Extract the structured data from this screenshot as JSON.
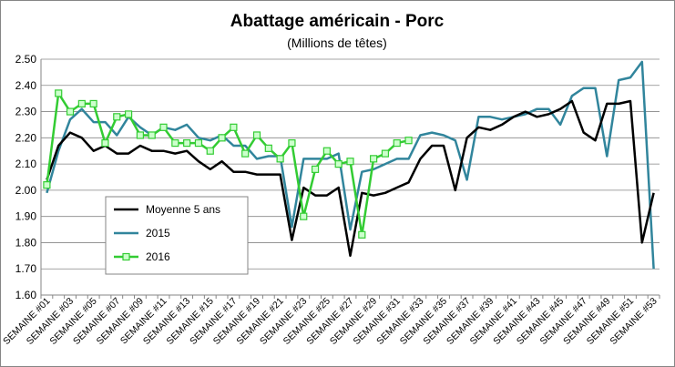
{
  "chart_data": {
    "type": "line",
    "title": "Abattage américain - Porc",
    "subtitle": "(Millions de têtes)",
    "xlabel": "",
    "ylabel": "",
    "ylim": [
      1.6,
      2.5
    ],
    "ytick_labels": [
      "1.60",
      "1.70",
      "1.80",
      "1.90",
      "2.00",
      "2.10",
      "2.20",
      "2.30",
      "2.40",
      "2.50"
    ],
    "grid": true,
    "legend_position": "bottom-left",
    "categories": [
      "SEMAINE #01",
      "SEMAINE #02",
      "SEMAINE #03",
      "SEMAINE #04",
      "SEMAINE #05",
      "SEMAINE #06",
      "SEMAINE #07",
      "SEMAINE #08",
      "SEMAINE #09",
      "SEMAINE #10",
      "SEMAINE #11",
      "SEMAINE #12",
      "SEMAINE #13",
      "SEMAINE #14",
      "SEMAINE #15",
      "SEMAINE #16",
      "SEMAINE #17",
      "SEMAINE #18",
      "SEMAINE #19",
      "SEMAINE #20",
      "SEMAINE #21",
      "SEMAINE #22",
      "SEMAINE #23",
      "SEMAINE #24",
      "SEMAINE #25",
      "SEMAINE #26",
      "SEMAINE #27",
      "SEMAINE #28",
      "SEMAINE #29",
      "SEMAINE #30",
      "SEMAINE #31",
      "SEMAINE #32",
      "SEMAINE #33",
      "SEMAINE #34",
      "SEMAINE #35",
      "SEMAINE #36",
      "SEMAINE #37",
      "SEMAINE #38",
      "SEMAINE #39",
      "SEMAINE #40",
      "SEMAINE #41",
      "SEMAINE #42",
      "SEMAINE #43",
      "SEMAINE #44",
      "SEMAINE #45",
      "SEMAINE #46",
      "SEMAINE #47",
      "SEMAINE #48",
      "SEMAINE #49",
      "SEMAINE #50",
      "SEMAINE #51",
      "SEMAINE #52",
      "SEMAINE #53"
    ],
    "xtick_labels": [
      "SEMAINE #01",
      "SEMAINE #03",
      "SEMAINE #05",
      "SEMAINE #07",
      "SEMAINE #09",
      "SEMAINE #11",
      "SEMAINE #13",
      "SEMAINE #15",
      "SEMAINE #17",
      "SEMAINE #19",
      "SEMAINE #21",
      "SEMAINE #23",
      "SEMAINE #25",
      "SEMAINE #27",
      "SEMAINE #29",
      "SEMAINE #31",
      "SEMAINE #33",
      "SEMAINE #35",
      "SEMAINE #37",
      "SEMAINE #39",
      "SEMAINE #41",
      "SEMAINE #43",
      "SEMAINE #45",
      "SEMAINE #47",
      "SEMAINE #49",
      "SEMAINE #51",
      "SEMAINE #53"
    ],
    "series": [
      {
        "name": "Moyenne 5 ans",
        "color": "#000000",
        "marker": "none",
        "values": [
          2.04,
          2.17,
          2.22,
          2.2,
          2.15,
          2.17,
          2.14,
          2.14,
          2.17,
          2.15,
          2.15,
          2.14,
          2.15,
          2.11,
          2.08,
          2.11,
          2.07,
          2.07,
          2.06,
          2.06,
          2.06,
          1.81,
          2.01,
          1.98,
          1.98,
          2.01,
          1.75,
          1.99,
          1.98,
          1.99,
          2.01,
          2.03,
          2.12,
          2.17,
          2.17,
          2.0,
          2.2,
          2.24,
          2.23,
          2.25,
          2.28,
          2.3,
          2.28,
          2.29,
          2.31,
          2.34,
          2.22,
          2.19,
          2.33,
          2.33,
          2.34,
          1.8,
          1.99
        ]
      },
      {
        "name": "2015",
        "color": "#31859c",
        "marker": "none",
        "values": [
          1.99,
          2.15,
          2.27,
          2.31,
          2.26,
          2.26,
          2.21,
          2.28,
          2.24,
          2.21,
          2.24,
          2.23,
          2.25,
          2.2,
          2.19,
          2.21,
          2.17,
          2.17,
          2.12,
          2.13,
          2.13,
          1.86,
          2.12,
          2.12,
          2.12,
          2.14,
          1.85,
          2.07,
          2.08,
          2.1,
          2.12,
          2.12,
          2.21,
          2.22,
          2.21,
          2.19,
          2.04,
          2.28,
          2.28,
          2.27,
          2.28,
          2.29,
          2.31,
          2.31,
          2.25,
          2.36,
          2.39,
          2.39,
          2.13,
          2.42,
          2.43,
          2.49,
          1.7
        ]
      },
      {
        "name": "2016",
        "color": "#33cc33",
        "marker": "square",
        "marker_fill": "#ccffcc",
        "values": [
          2.02,
          2.37,
          2.3,
          2.33,
          2.33,
          2.18,
          2.28,
          2.29,
          2.21,
          2.21,
          2.24,
          2.18,
          2.18,
          2.18,
          2.15,
          2.2,
          2.24,
          2.14,
          2.21,
          2.16,
          2.12,
          2.18,
          1.9,
          2.08,
          2.15,
          2.1,
          2.11,
          1.83,
          2.12,
          2.14,
          2.18,
          2.19,
          null,
          null,
          null,
          null,
          null,
          null,
          null,
          null,
          null,
          null,
          null,
          null,
          null,
          null,
          null,
          null,
          null,
          null,
          null,
          null,
          null
        ]
      }
    ]
  }
}
